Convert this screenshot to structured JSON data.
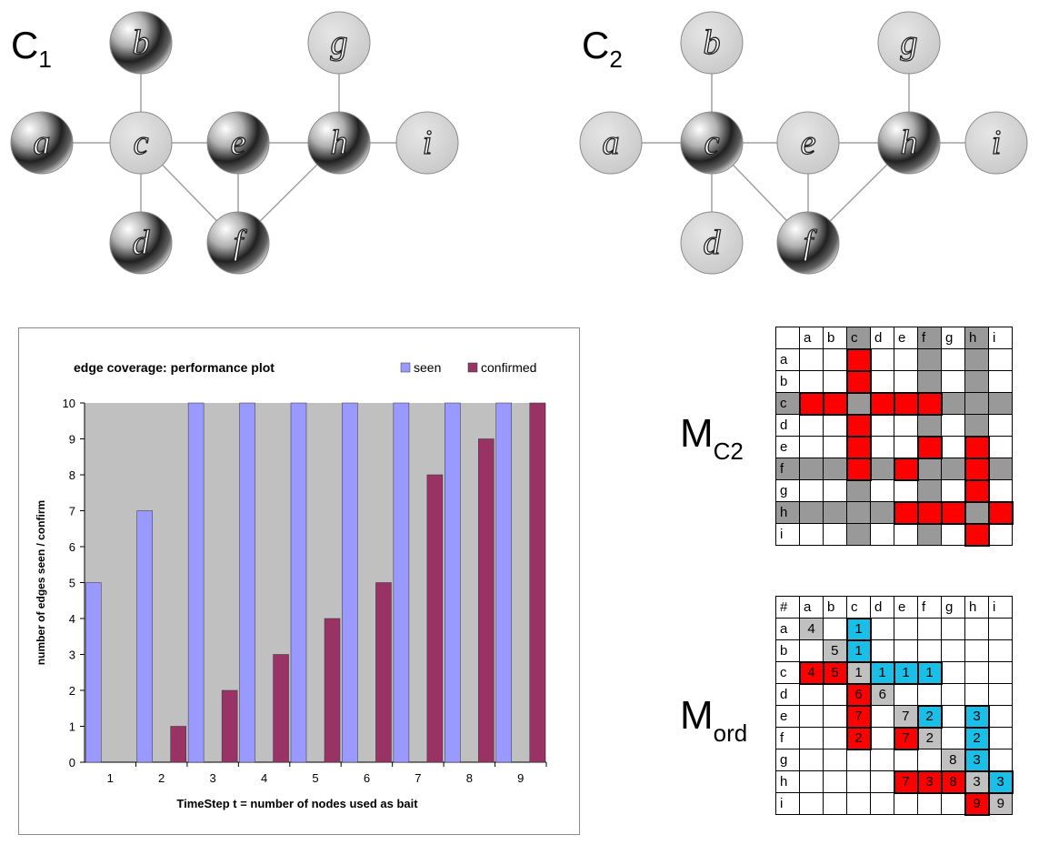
{
  "graph1": {
    "label_main": "C",
    "label_sub": "1",
    "nodes": [
      {
        "id": "a",
        "state": "dark"
      },
      {
        "id": "b",
        "state": "dark"
      },
      {
        "id": "c",
        "state": "light"
      },
      {
        "id": "d",
        "state": "dark"
      },
      {
        "id": "e",
        "state": "dark"
      },
      {
        "id": "f",
        "state": "dark"
      },
      {
        "id": "g",
        "state": "light"
      },
      {
        "id": "h",
        "state": "dark"
      },
      {
        "id": "i",
        "state": "light"
      }
    ],
    "edges": [
      [
        "a",
        "c"
      ],
      [
        "b",
        "c"
      ],
      [
        "c",
        "d"
      ],
      [
        "c",
        "e"
      ],
      [
        "c",
        "f"
      ],
      [
        "e",
        "f"
      ],
      [
        "e",
        "h"
      ],
      [
        "f",
        "h"
      ],
      [
        "g",
        "h"
      ],
      [
        "h",
        "i"
      ]
    ]
  },
  "graph2": {
    "label_main": "C",
    "label_sub": "2",
    "nodes": [
      {
        "id": "a",
        "state": "light"
      },
      {
        "id": "b",
        "state": "light"
      },
      {
        "id": "c",
        "state": "dark"
      },
      {
        "id": "d",
        "state": "light"
      },
      {
        "id": "e",
        "state": "light"
      },
      {
        "id": "f",
        "state": "dark"
      },
      {
        "id": "g",
        "state": "light"
      },
      {
        "id": "h",
        "state": "dark"
      },
      {
        "id": "i",
        "state": "light"
      }
    ],
    "edges": [
      [
        "a",
        "c"
      ],
      [
        "b",
        "c"
      ],
      [
        "c",
        "d"
      ],
      [
        "c",
        "e"
      ],
      [
        "c",
        "f"
      ],
      [
        "e",
        "f"
      ],
      [
        "e",
        "h"
      ],
      [
        "f",
        "h"
      ],
      [
        "g",
        "h"
      ],
      [
        "h",
        "i"
      ]
    ]
  },
  "chart_data": {
    "type": "bar",
    "title": "edge coverage: performance plot",
    "xlabel": "TimeStep t = number of nodes used as bait",
    "ylabel": "number of edges seen / confirm",
    "categories": [
      "1",
      "2",
      "3",
      "4",
      "5",
      "6",
      "7",
      "8",
      "9"
    ],
    "ylim": [
      0,
      10
    ],
    "yticks": [
      "0",
      "1",
      "2",
      "3",
      "4",
      "5",
      "6",
      "7",
      "8",
      "9",
      "10"
    ],
    "grid": false,
    "legend_position": "top-right",
    "series": [
      {
        "name": "seen",
        "values": [
          5,
          7,
          10,
          10,
          10,
          10,
          10,
          10,
          10
        ],
        "color": "#9999ff"
      },
      {
        "name": "confirmed",
        "values": [
          0,
          1,
          2,
          3,
          4,
          5,
          8,
          9,
          10
        ],
        "color": "#993366"
      }
    ],
    "plot_background": "#c0c0c0"
  },
  "matrix_c2": {
    "label_main": "M",
    "label_sub": "C2",
    "corner": "",
    "cols": [
      "a",
      "b",
      "c",
      "d",
      "e",
      "f",
      "g",
      "h",
      "i"
    ],
    "rows": [
      {
        "label": "a",
        "row_class": "",
        "cells": [
          "",
          "",
          "r",
          "",
          "",
          "g",
          "",
          "g",
          ""
        ]
      },
      {
        "label": "b",
        "row_class": "",
        "cells": [
          "",
          "",
          "r",
          "",
          "",
          "g",
          "",
          "g",
          ""
        ]
      },
      {
        "label": "c",
        "row_class": "g",
        "cells": [
          "r",
          "r",
          "g",
          "r",
          "r",
          "r",
          "g",
          "g",
          "g"
        ]
      },
      {
        "label": "d",
        "row_class": "",
        "cells": [
          "",
          "",
          "r",
          "",
          "",
          "g",
          "",
          "g",
          ""
        ]
      },
      {
        "label": "e",
        "row_class": "",
        "cells": [
          "",
          "",
          "r",
          "",
          "",
          "r",
          "",
          "r",
          ""
        ]
      },
      {
        "label": "f",
        "row_class": "g",
        "cells": [
          "g",
          "g",
          "r",
          "g",
          "r",
          "g",
          "g",
          "r",
          "g"
        ]
      },
      {
        "label": "g",
        "row_class": "",
        "cells": [
          "",
          "",
          "g",
          "",
          "",
          "g",
          "",
          "r",
          ""
        ]
      },
      {
        "label": "h",
        "row_class": "g",
        "cells": [
          "g",
          "g",
          "g",
          "g",
          "r",
          "r",
          "r",
          "g",
          "r"
        ]
      },
      {
        "label": "i",
        "row_class": "",
        "cells": [
          "",
          "",
          "g",
          "",
          "",
          "g",
          "",
          "r",
          ""
        ]
      }
    ]
  },
  "matrix_ord": {
    "label_main": "M",
    "label_sub": "ord",
    "corner": "#",
    "cols": [
      "a",
      "b",
      "c",
      "d",
      "e",
      "f",
      "g",
      "h",
      "i"
    ],
    "rows": [
      {
        "label": "a",
        "cells": [
          {
            "t": "l",
            "v": "4"
          },
          {
            "t": "",
            "v": ""
          },
          {
            "t": "b",
            "v": "1"
          },
          {
            "t": "",
            "v": ""
          },
          {
            "t": "",
            "v": ""
          },
          {
            "t": "",
            "v": ""
          },
          {
            "t": "",
            "v": ""
          },
          {
            "t": "",
            "v": ""
          },
          {
            "t": "",
            "v": ""
          }
        ]
      },
      {
        "label": "b",
        "cells": [
          {
            "t": "",
            "v": ""
          },
          {
            "t": "l",
            "v": "5"
          },
          {
            "t": "b",
            "v": "1"
          },
          {
            "t": "",
            "v": ""
          },
          {
            "t": "",
            "v": ""
          },
          {
            "t": "",
            "v": ""
          },
          {
            "t": "",
            "v": ""
          },
          {
            "t": "",
            "v": ""
          },
          {
            "t": "",
            "v": ""
          }
        ]
      },
      {
        "label": "c",
        "cells": [
          {
            "t": "r",
            "v": "4"
          },
          {
            "t": "r",
            "v": "5"
          },
          {
            "t": "l",
            "v": "1"
          },
          {
            "t": "b",
            "v": "1"
          },
          {
            "t": "b",
            "v": "1"
          },
          {
            "t": "b",
            "v": "1"
          },
          {
            "t": "",
            "v": ""
          },
          {
            "t": "",
            "v": ""
          },
          {
            "t": "",
            "v": ""
          }
        ]
      },
      {
        "label": "d",
        "cells": [
          {
            "t": "",
            "v": ""
          },
          {
            "t": "",
            "v": ""
          },
          {
            "t": "r",
            "v": "6"
          },
          {
            "t": "l",
            "v": "6"
          },
          {
            "t": "",
            "v": ""
          },
          {
            "t": "",
            "v": ""
          },
          {
            "t": "",
            "v": ""
          },
          {
            "t": "",
            "v": ""
          },
          {
            "t": "",
            "v": ""
          }
        ]
      },
      {
        "label": "e",
        "cells": [
          {
            "t": "",
            "v": ""
          },
          {
            "t": "",
            "v": ""
          },
          {
            "t": "r",
            "v": "7"
          },
          {
            "t": "",
            "v": ""
          },
          {
            "t": "l",
            "v": "7"
          },
          {
            "t": "b",
            "v": "2"
          },
          {
            "t": "",
            "v": ""
          },
          {
            "t": "b",
            "v": "3"
          },
          {
            "t": "",
            "v": ""
          }
        ]
      },
      {
        "label": "f",
        "cells": [
          {
            "t": "",
            "v": ""
          },
          {
            "t": "",
            "v": ""
          },
          {
            "t": "r",
            "v": "2"
          },
          {
            "t": "",
            "v": ""
          },
          {
            "t": "r",
            "v": "7"
          },
          {
            "t": "l",
            "v": "2"
          },
          {
            "t": "",
            "v": ""
          },
          {
            "t": "b",
            "v": "2"
          },
          {
            "t": "",
            "v": ""
          }
        ]
      },
      {
        "label": "g",
        "cells": [
          {
            "t": "",
            "v": ""
          },
          {
            "t": "",
            "v": ""
          },
          {
            "t": "",
            "v": ""
          },
          {
            "t": "",
            "v": ""
          },
          {
            "t": "",
            "v": ""
          },
          {
            "t": "",
            "v": ""
          },
          {
            "t": "l",
            "v": "8"
          },
          {
            "t": "b",
            "v": "3"
          },
          {
            "t": "",
            "v": ""
          }
        ]
      },
      {
        "label": "h",
        "cells": [
          {
            "t": "",
            "v": ""
          },
          {
            "t": "",
            "v": ""
          },
          {
            "t": "",
            "v": ""
          },
          {
            "t": "",
            "v": ""
          },
          {
            "t": "r",
            "v": "7"
          },
          {
            "t": "r",
            "v": "3"
          },
          {
            "t": "r",
            "v": "8"
          },
          {
            "t": "l",
            "v": "3"
          },
          {
            "t": "b",
            "v": "3"
          }
        ]
      },
      {
        "label": "i",
        "cells": [
          {
            "t": "",
            "v": ""
          },
          {
            "t": "",
            "v": ""
          },
          {
            "t": "",
            "v": ""
          },
          {
            "t": "",
            "v": ""
          },
          {
            "t": "",
            "v": ""
          },
          {
            "t": "",
            "v": ""
          },
          {
            "t": "",
            "v": ""
          },
          {
            "t": "r",
            "v": "9"
          },
          {
            "t": "l",
            "v": "9"
          }
        ]
      }
    ]
  }
}
